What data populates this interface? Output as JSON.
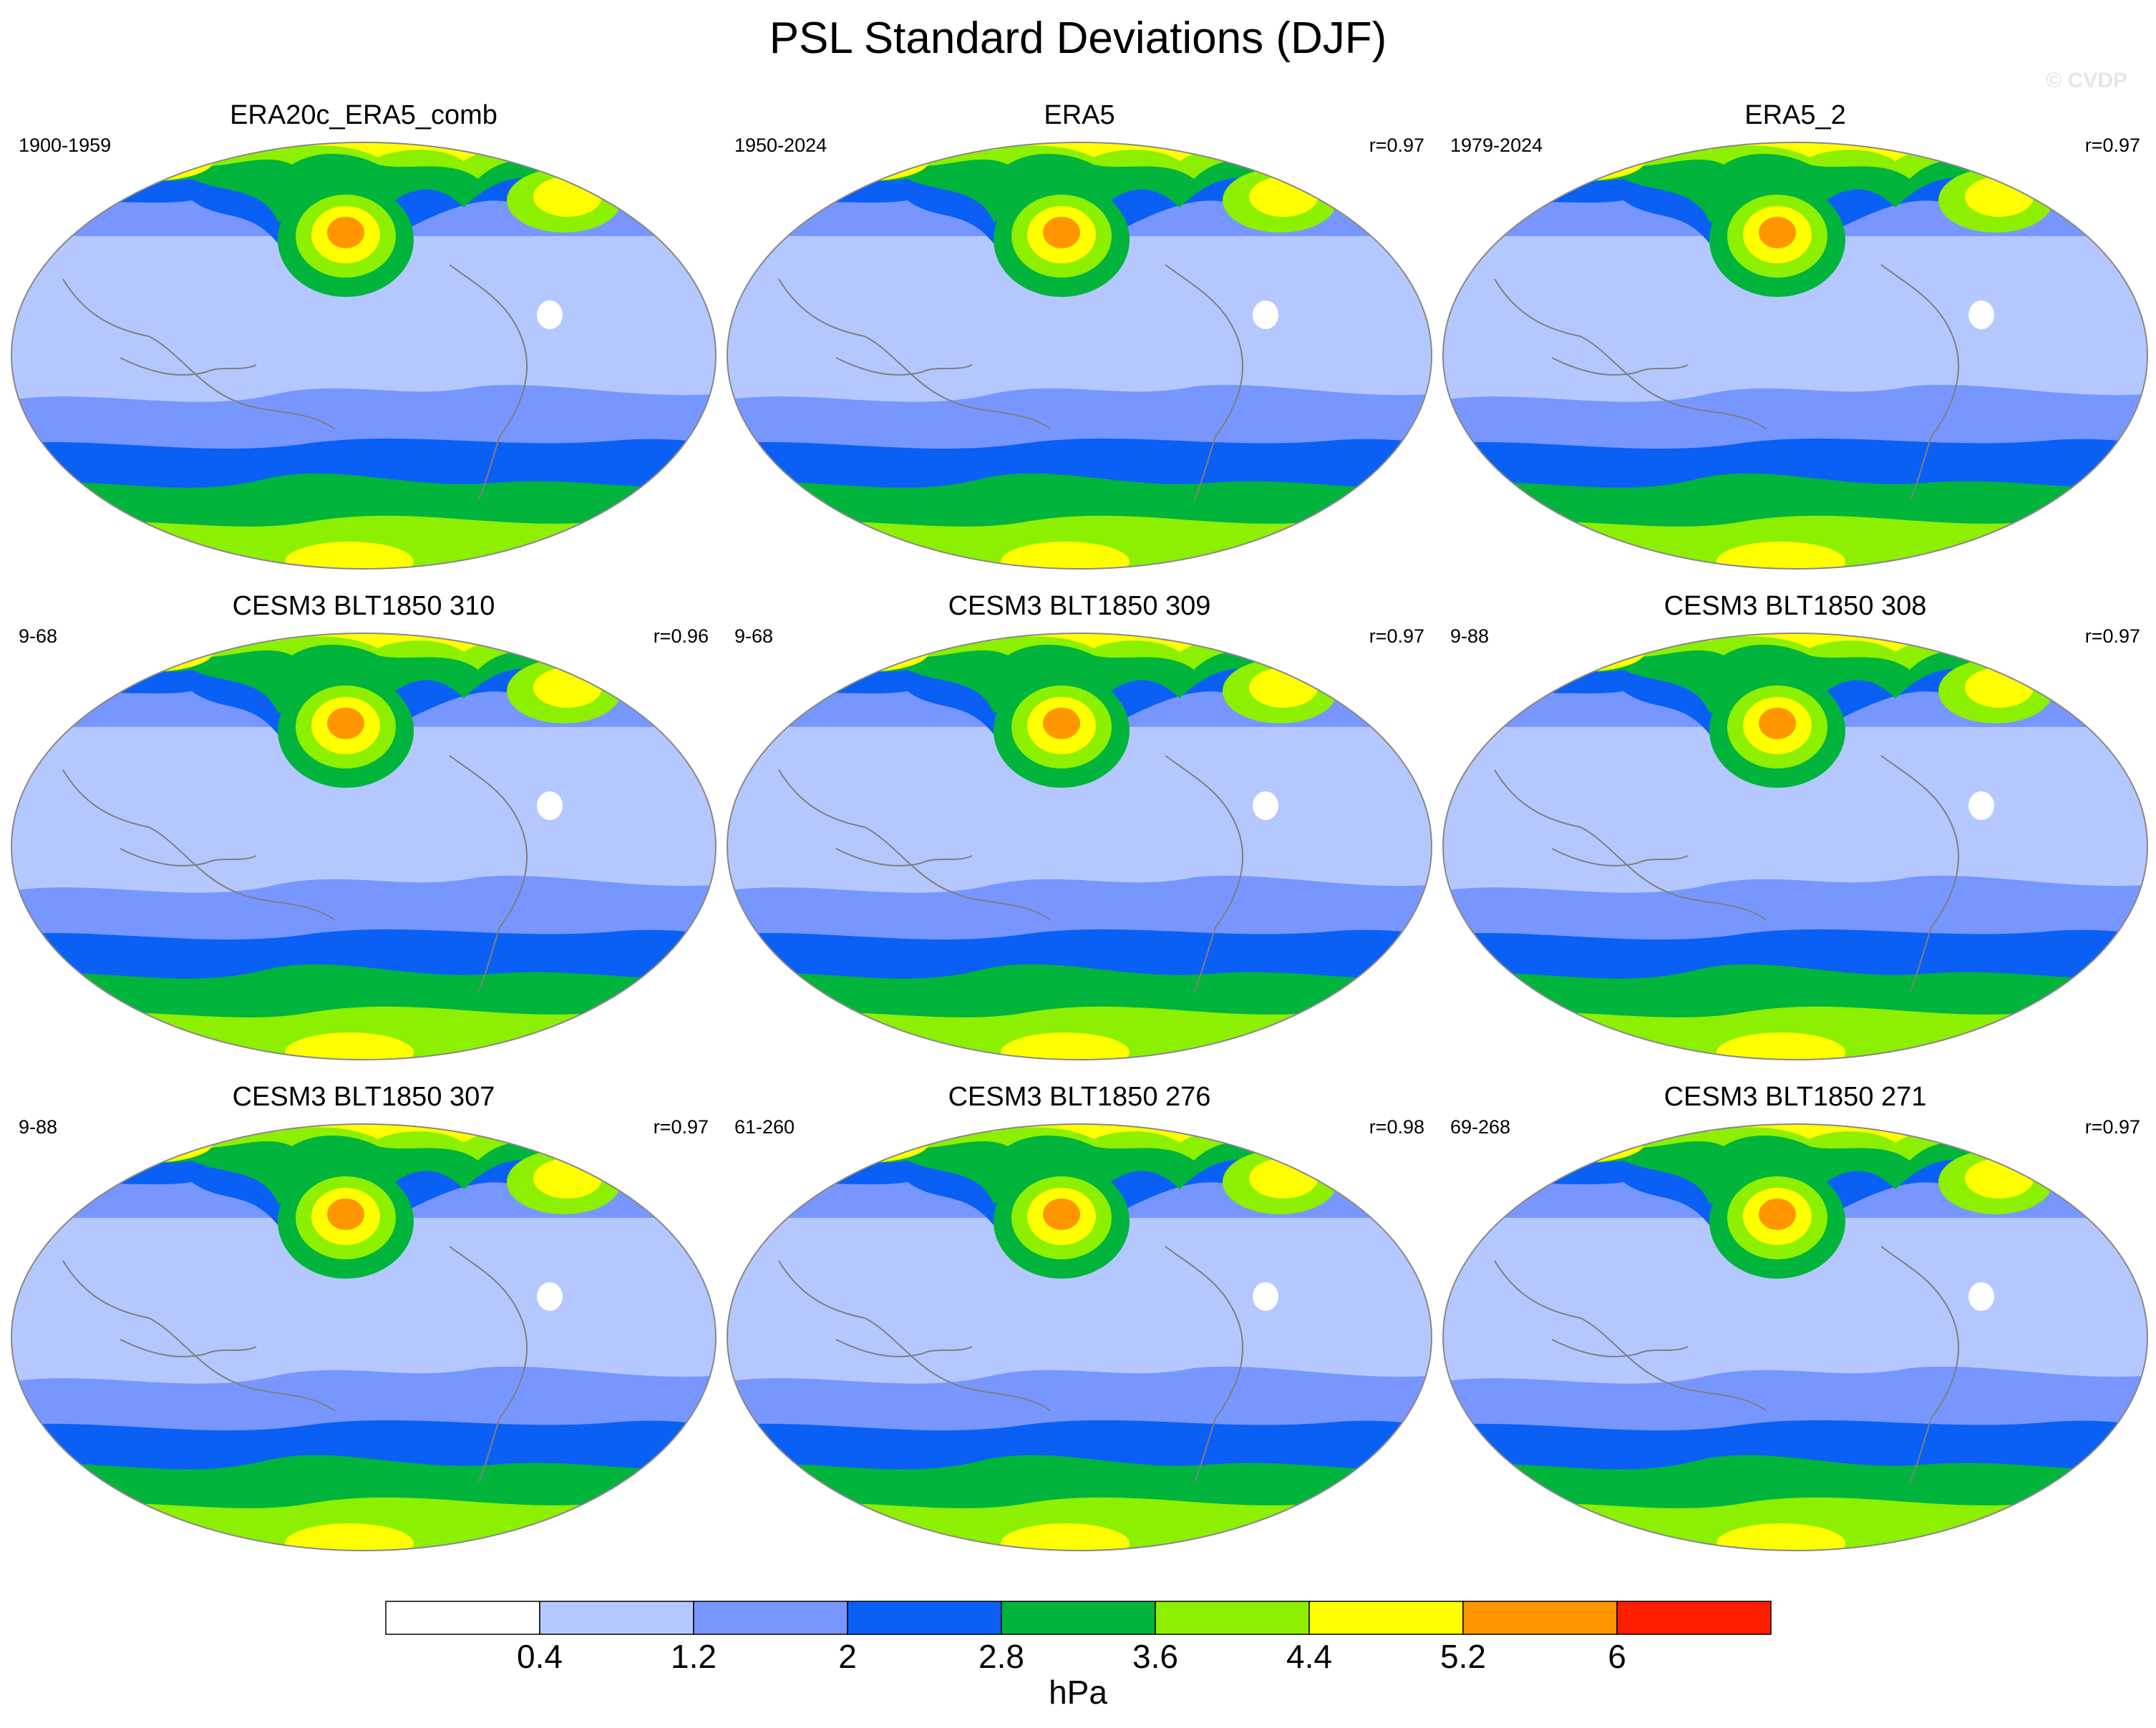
{
  "figure": {
    "title": "PSL Standard Deviations (DJF)",
    "watermark": "© CVDP",
    "variable": "PSL standard deviation",
    "season": "DJF"
  },
  "panels": [
    {
      "title": "ERA20c_ERA5_comb",
      "years": "1900-1959",
      "corr": ""
    },
    {
      "title": "ERA5",
      "years": "1950-2024",
      "corr": "r=0.97"
    },
    {
      "title": "ERA5_2",
      "years": "1979-2024",
      "corr": "r=0.97"
    },
    {
      "title": "CESM3 BLT1850 310",
      "years": "9-68",
      "corr": "r=0.96"
    },
    {
      "title": "CESM3 BLT1850 309",
      "years": "9-68",
      "corr": "r=0.97"
    },
    {
      "title": "CESM3 BLT1850 308",
      "years": "9-88",
      "corr": "r=0.97"
    },
    {
      "title": "CESM3 BLT1850 307",
      "years": "9-88",
      "corr": "r=0.97"
    },
    {
      "title": "CESM3 BLT1850 276",
      "years": "61-260",
      "corr": "r=0.98"
    },
    {
      "title": "CESM3 BLT1850 271",
      "years": "69-268",
      "corr": "r=0.97"
    }
  ],
  "colorbar": {
    "unit": "hPa",
    "levels": [
      "0.4",
      "1.2",
      "2",
      "2.8",
      "3.6",
      "4.4",
      "5.2",
      "6"
    ],
    "colors": [
      "#ffffff",
      "#b4c8ff",
      "#7896ff",
      "#0a5ff5",
      "#00b43c",
      "#8cf000",
      "#ffff00",
      "#ff9600",
      "#ff1e00"
    ]
  },
  "map_colors": {
    "outline": "#888888",
    "coast": "#7f7f7f"
  }
}
